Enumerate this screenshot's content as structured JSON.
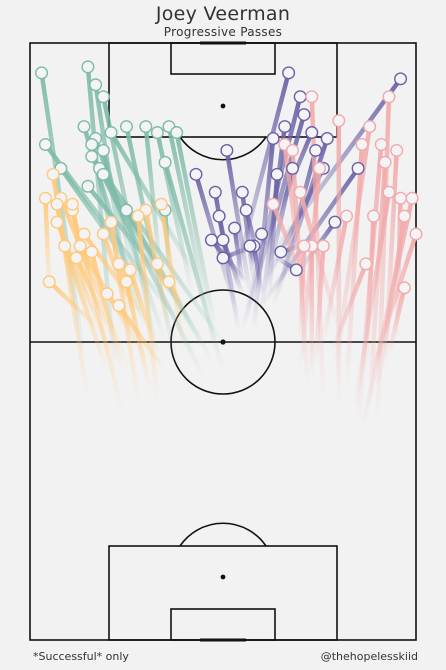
{
  "header": {
    "title": "Joey Veerman",
    "subtitle": "Progressive Passes"
  },
  "footer": {
    "note": "*Successful* only",
    "handle": "@thehopelesskiid"
  },
  "chart_data": {
    "type": "scatter",
    "description_mode": "pass-map",
    "pitch": {
      "length": 100,
      "width": 100,
      "orientation": "vertical",
      "attack_direction": "up"
    },
    "colors": {
      "teal": "#7fbba9",
      "orange": "#ffc97a",
      "purple": "#6b62a6",
      "pink": "#f2aaaa",
      "background": "#f2f2f2",
      "lines": "#111111"
    },
    "series": [
      {
        "color_key": "teal",
        "passes": [
          {
            "start": [
              14,
              47
            ],
            "end": [
              3,
              95
            ]
          },
          {
            "start": [
              22,
              45
            ],
            "end": [
              15,
              96
            ]
          },
          {
            "start": [
              26,
              55
            ],
            "end": [
              17,
              93
            ]
          },
          {
            "start": [
              33,
              48
            ],
            "end": [
              19,
              91
            ]
          },
          {
            "start": [
              30,
              52
            ],
            "end": [
              14,
              86
            ]
          },
          {
            "start": [
              35,
              50
            ],
            "end": [
              17,
              84
            ]
          },
          {
            "start": [
              38,
              46
            ],
            "end": [
              25,
              86
            ]
          },
          {
            "start": [
              40,
              52
            ],
            "end": [
              4,
              83
            ]
          },
          {
            "start": [
              31,
              58
            ],
            "end": [
              8,
              79
            ]
          },
          {
            "start": [
              45,
              44
            ],
            "end": [
              18,
              79
            ]
          },
          {
            "start": [
              40,
              56
            ],
            "end": [
              15,
              76
            ]
          },
          {
            "start": [
              44,
              50
            ],
            "end": [
              19,
              78
            ]
          },
          {
            "start": [
              47,
              47
            ],
            "end": [
              25,
              72
            ]
          },
          {
            "start": [
              50,
              45
            ],
            "end": [
              35,
              80
            ]
          },
          {
            "start": [
              42,
              58
            ],
            "end": [
              33,
              85
            ]
          },
          {
            "start": [
              46,
              55
            ],
            "end": [
              36,
              86
            ]
          },
          {
            "start": [
              48,
              52
            ],
            "end": [
              38,
              85
            ]
          },
          {
            "start": [
              27,
              62
            ],
            "end": [
              19,
              82
            ]
          },
          {
            "start": [
              24,
              60
            ],
            "end": [
              16,
              83
            ]
          },
          {
            "start": [
              36,
              62
            ],
            "end": [
              35,
              72
            ]
          },
          {
            "start": [
              44,
              60
            ],
            "end": [
              21,
              85
            ]
          },
          {
            "start": [
              34,
              60
            ],
            "end": [
              30,
              86
            ]
          },
          {
            "start": [
              51,
              49
            ],
            "end": [
              16,
              81
            ]
          }
        ]
      },
      {
        "color_key": "orange",
        "passes": [
          {
            "start": [
              5,
              58
            ],
            "end": [
              4,
              74
            ]
          },
          {
            "start": [
              15,
              40
            ],
            "end": [
              6,
              78
            ]
          },
          {
            "start": [
              24,
              38
            ],
            "end": [
              11,
              72
            ]
          },
          {
            "start": [
              26,
              45
            ],
            "end": [
              8,
              74
            ]
          },
          {
            "start": [
              30,
              47
            ],
            "end": [
              13,
              66
            ]
          },
          {
            "start": [
              21,
              48
            ],
            "end": [
              7,
              70
            ]
          },
          {
            "start": [
              18,
              52
            ],
            "end": [
              5,
              60
            ]
          },
          {
            "start": [
              32,
              52
            ],
            "end": [
              14,
              68
            ]
          },
          {
            "start": [
              12,
              55
            ],
            "end": [
              7,
              73
            ]
          },
          {
            "start": [
              28,
              40
            ],
            "end": [
              21,
              70
            ]
          },
          {
            "start": [
              35,
              45
            ],
            "end": [
              23,
              56
            ]
          },
          {
            "start": [
              33,
              48
            ],
            "end": [
              26,
              62
            ]
          },
          {
            "start": [
              15,
              55
            ],
            "end": [
              11,
              73
            ]
          },
          {
            "start": [
              36,
              52
            ],
            "end": [
              30,
              72
            ]
          },
          {
            "start": [
              26,
              55
            ],
            "end": [
              19,
              68
            ]
          },
          {
            "start": [
              29,
              50
            ],
            "end": [
              20,
              58
            ]
          },
          {
            "start": [
              36,
              58
            ],
            "end": [
              33,
              63
            ]
          },
          {
            "start": [
              40,
              55
            ],
            "end": [
              36,
              60
            ]
          },
          {
            "start": [
              31,
              42
            ],
            "end": [
              25,
              60
            ]
          },
          {
            "start": [
              22,
              50
            ],
            "end": [
              12,
              64
            ]
          },
          {
            "start": [
              40,
              48
            ],
            "end": [
              34,
              73
            ]
          },
          {
            "start": [
              28,
              55
            ],
            "end": [
              23,
              63
            ]
          },
          {
            "start": [
              24,
              45
            ],
            "end": [
              16,
              65
            ]
          },
          {
            "start": [
              20,
              45
            ],
            "end": [
              9,
              66
            ]
          },
          {
            "start": [
              33,
              40
            ],
            "end": [
              28,
              71
            ]
          }
        ]
      },
      {
        "color_key": "purple",
        "passes": [
          {
            "start": [
              52,
              58
            ],
            "end": [
              67,
              95
            ]
          },
          {
            "start": [
              56,
              55
            ],
            "end": [
              70,
              91
            ]
          },
          {
            "start": [
              58,
              52
            ],
            "end": [
              63,
              84
            ]
          },
          {
            "start": [
              55,
              52
            ],
            "end": [
              71,
              88
            ]
          },
          {
            "start": [
              60,
              55
            ],
            "end": [
              66,
              86
            ]
          },
          {
            "start": [
              57,
              58
            ],
            "end": [
              51,
              82
            ]
          },
          {
            "start": [
              54,
              52
            ],
            "end": [
              48,
              75
            ]
          },
          {
            "start": [
              53,
              56
            ],
            "end": [
              43,
              78
            ]
          },
          {
            "start": [
              58,
              60
            ],
            "end": [
              55,
              75
            ]
          },
          {
            "start": [
              60,
              62
            ],
            "end": [
              56,
              72
            ]
          },
          {
            "start": [
              55,
              58
            ],
            "end": [
              50,
              67
            ]
          },
          {
            "start": [
              52,
              62
            ],
            "end": [
              49,
              71
            ]
          },
          {
            "start": [
              56,
              60
            ],
            "end": [
              47,
              67
            ]
          },
          {
            "start": [
              55,
              60
            ],
            "end": [
              53,
              69
            ]
          },
          {
            "start": [
              60,
              58
            ],
            "end": [
              58,
              66
            ]
          },
          {
            "start": [
              62,
              62
            ],
            "end": [
              68,
              79
            ]
          },
          {
            "start": [
              62,
              58
            ],
            "end": [
              64,
              78
            ]
          },
          {
            "start": [
              61,
              60
            ],
            "end": [
              76,
              79
            ]
          },
          {
            "start": [
              60,
              56
            ],
            "end": [
              85,
              79
            ]
          },
          {
            "start": [
              70,
              62
            ],
            "end": [
              79,
              70
            ]
          },
          {
            "start": [
              65,
              60
            ],
            "end": [
              74,
              82
            ]
          },
          {
            "start": [
              63,
              56
            ],
            "end": [
              77,
              84
            ]
          },
          {
            "start": [
              64,
              64
            ],
            "end": [
              69,
              62
            ]
          },
          {
            "start": [
              58,
              66
            ],
            "end": [
              50,
              64
            ]
          },
          {
            "start": [
              70,
              66
            ],
            "end": [
              65,
              65
            ]
          },
          {
            "start": [
              62,
              68
            ],
            "end": [
              73,
              85
            ]
          },
          {
            "start": [
              58,
              63
            ],
            "end": [
              57,
              66
            ]
          },
          {
            "start": [
              62,
              64
            ],
            "end": [
              96,
              94
            ]
          },
          {
            "start": [
              61,
              66
            ],
            "end": [
              60,
              68
            ]
          }
        ]
      },
      {
        "color_key": "pink",
        "passes": [
          {
            "start": [
              76,
              40
            ],
            "end": [
              73,
              91
            ]
          },
          {
            "start": [
              80,
              38
            ],
            "end": [
              80,
              87
            ]
          },
          {
            "start": [
              82,
              42
            ],
            "end": [
              86,
              83
            ]
          },
          {
            "start": [
              79,
              45
            ],
            "end": [
              88,
              86
            ]
          },
          {
            "start": [
              85,
              36
            ],
            "end": [
              91,
              83
            ]
          },
          {
            "start": [
              92,
              45
            ],
            "end": [
              95,
              82
            ]
          },
          {
            "start": [
              88,
              40
            ],
            "end": [
              92,
              80
            ]
          },
          {
            "start": [
              86,
              35
            ],
            "end": [
              99,
              74
            ]
          },
          {
            "start": [
              84,
              38
            ],
            "end": [
              93,
              75
            ]
          },
          {
            "start": [
              90,
              42
            ],
            "end": [
              97,
              71
            ]
          },
          {
            "start": [
              88,
              44
            ],
            "end": [
              100,
              68
            ]
          },
          {
            "start": [
              95,
              50
            ],
            "end": [
              96,
              74
            ]
          },
          {
            "start": [
              93,
              48
            ],
            "end": [
              97,
              59
            ]
          },
          {
            "start": [
              87,
              45
            ],
            "end": [
              89,
              71
            ]
          },
          {
            "start": [
              78,
              48
            ],
            "end": [
              87,
              63
            ]
          },
          {
            "start": [
              73,
              44
            ],
            "end": [
              73,
              66
            ]
          },
          {
            "start": [
              72,
              52
            ],
            "end": [
              66,
              83
            ]
          },
          {
            "start": [
              70,
              45
            ],
            "end": [
              75,
              79
            ]
          },
          {
            "start": [
              74,
              46
            ],
            "end": [
              76,
              66
            ]
          },
          {
            "start": [
              72,
              42
            ],
            "end": [
              68,
              82
            ]
          },
          {
            "start": [
              76,
              50
            ],
            "end": [
              82,
              71
            ]
          },
          {
            "start": [
              80,
              52
            ],
            "end": [
              70,
              75
            ]
          },
          {
            "start": [
              90,
              36
            ],
            "end": [
              93,
              91
            ]
          },
          {
            "start": [
              70,
              50
            ],
            "end": [
              71,
              66
            ]
          },
          {
            "start": [
              74,
              55
            ],
            "end": [
              63,
              73
            ]
          }
        ]
      }
    ],
    "legend": "none",
    "grid": false
  }
}
